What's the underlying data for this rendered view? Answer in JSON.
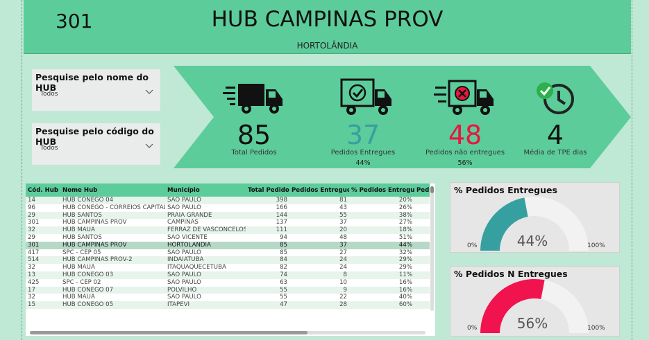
{
  "header": {
    "code": "301",
    "title": "HUB CAMPINAS PROV",
    "city": "HORTOLÂNDIA"
  },
  "slicers": [
    {
      "label": "Pesquise pelo nome do HUB",
      "value": "Todos"
    },
    {
      "label": "Pesquise pelo código do HUB",
      "value": "Todos"
    }
  ],
  "kpis": {
    "total": {
      "value": "85",
      "caption": "Total Pedidos",
      "icon": "delivery-truck-icon"
    },
    "delivered": {
      "value": "37",
      "caption": "Pedidos Entregues",
      "pct": "44%",
      "icon": "truck-check-icon",
      "color": "#3a9ea0"
    },
    "not_delivered": {
      "value": "48",
      "caption": "Pedidos não entregues",
      "pct": "56%",
      "icon": "truck-x-icon",
      "color": "#e8173f"
    },
    "tpe": {
      "value": "4",
      "caption": "Média de TPE dias",
      "icon": "clock-check-icon"
    }
  },
  "table": {
    "columns": [
      "Cód. Hub",
      "Nome Hub",
      "Município",
      "Total Pedidos",
      "Pedidos Entregues",
      "% Pedidos Entregues",
      "Ped"
    ],
    "rows": [
      [
        "14",
        "HUB CONEGO 04",
        "SÃO PAULO",
        "398",
        "81",
        "20%"
      ],
      [
        "96",
        "HUB CONEGO - CORREIOS CAPITAL",
        "SÃO PAULO",
        "166",
        "43",
        "26%"
      ],
      [
        "29",
        "HUB SANTOS",
        "PRAIA GRANDE",
        "144",
        "55",
        "38%"
      ],
      [
        "301",
        "HUB CAMPINAS PROV",
        "CAMPINAS",
        "137",
        "37",
        "27%"
      ],
      [
        "32",
        "HUB MAUA",
        "FERRAZ DE VASCONCELOS",
        "111",
        "20",
        "18%"
      ],
      [
        "29",
        "HUB SANTOS",
        "SÃO VICENTE",
        "94",
        "48",
        "51%"
      ],
      [
        "301",
        "HUB CAMPINAS PROV",
        "HORTOLÂNDIA",
        "85",
        "37",
        "44%"
      ],
      [
        "417",
        "SPC - CEP 05",
        "SÃO PAULO",
        "85",
        "27",
        "32%"
      ],
      [
        "514",
        "HUB CAMPINAS PROV-2",
        "INDAIATUBA",
        "84",
        "24",
        "29%"
      ],
      [
        "32",
        "HUB MAUA",
        "ITAQUAQUECETUBA",
        "82",
        "24",
        "29%"
      ],
      [
        "13",
        "HUB CONEGO 03",
        "SÃO PAULO",
        "74",
        "8",
        "11%"
      ],
      [
        "425",
        "SPC - CEP 02",
        "SÃO PAULO",
        "63",
        "10",
        "16%"
      ],
      [
        "17",
        "HUB CONEGO 07",
        "POLVILHO",
        "55",
        "9",
        "16%"
      ],
      [
        "32",
        "HUB MAUA",
        "SÃO PAULO",
        "55",
        "22",
        "40%"
      ],
      [
        "15",
        "HUB CONEGO 05",
        "ITAPEVI",
        "47",
        "28",
        "60%"
      ]
    ],
    "selected_index": 6
  },
  "gauges": [
    {
      "title": "% Pedidos Entregues",
      "value": 44,
      "label": "44%",
      "min": "0%",
      "max": "100%",
      "color": "#36a0a0"
    },
    {
      "title": "% Pedidos N Entregues",
      "value": 56,
      "label": "56%",
      "min": "0%",
      "max": "100%",
      "color": "#f0134d"
    }
  ]
}
